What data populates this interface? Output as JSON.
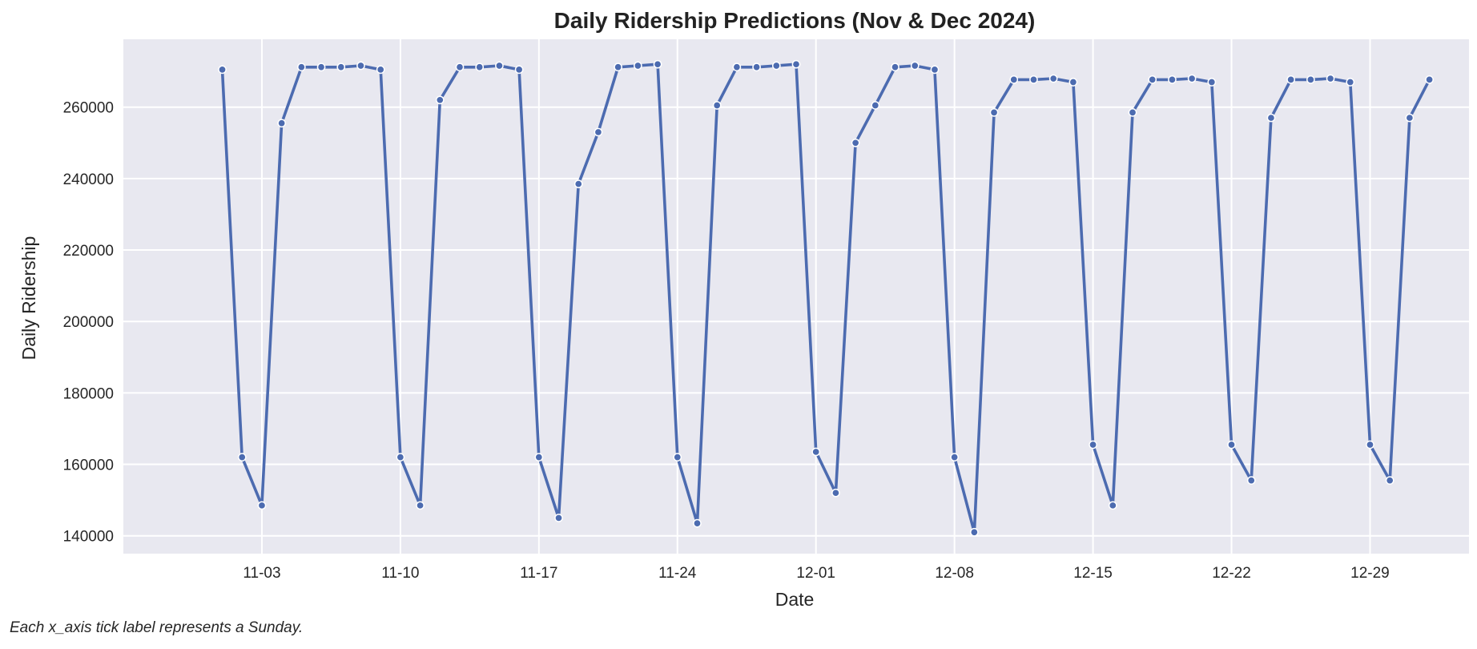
{
  "chart_data": {
    "type": "line",
    "title": "Daily Ridership Predictions (Nov & Dec 2024)",
    "xlabel": "Date",
    "ylabel": "Daily Ridership",
    "x_tick_labels": [
      "11-03",
      "11-10",
      "11-17",
      "11-24",
      "12-01",
      "12-08",
      "12-15",
      "12-22",
      "12-29"
    ],
    "y_ticks": [
      140000,
      160000,
      180000,
      200000,
      220000,
      240000,
      260000
    ],
    "ylim": [
      135000,
      279000
    ],
    "xlim": [
      "2024-10-27",
      "2025-01-03"
    ],
    "grid": true,
    "markers": true,
    "colors": {
      "line": "#4c6bb0",
      "plot_background": "#e8e8f0",
      "grid": "#ffffff",
      "marker_edge": "#ffffff"
    },
    "series": [
      {
        "x": [
          "2024-11-01",
          "2024-11-02",
          "2024-11-03",
          "2024-11-04",
          "2024-11-05",
          "2024-11-06",
          "2024-11-07",
          "2024-11-08",
          "2024-11-09",
          "2024-11-10",
          "2024-11-11",
          "2024-11-12",
          "2024-11-13",
          "2024-11-14",
          "2024-11-15",
          "2024-11-16",
          "2024-11-17",
          "2024-11-18",
          "2024-11-19",
          "2024-11-20",
          "2024-11-21",
          "2024-11-22",
          "2024-11-23",
          "2024-11-24",
          "2024-11-25",
          "2024-11-26",
          "2024-11-27",
          "2024-11-28",
          "2024-11-29",
          "2024-11-30",
          "2024-12-01",
          "2024-12-02",
          "2024-12-03",
          "2024-12-04",
          "2024-12-05",
          "2024-12-06",
          "2024-12-07",
          "2024-12-08",
          "2024-12-09",
          "2024-12-10",
          "2024-12-11",
          "2024-12-12",
          "2024-12-13",
          "2024-12-14",
          "2024-12-15",
          "2024-12-16",
          "2024-12-17",
          "2024-12-18",
          "2024-12-19",
          "2024-12-20",
          "2024-12-21",
          "2024-12-22",
          "2024-12-23",
          "2024-12-24",
          "2024-12-25",
          "2024-12-26",
          "2024-12-27",
          "2024-12-28",
          "2024-12-29",
          "2024-12-30",
          "2024-12-31"
        ],
        "y": [
          270500,
          162000,
          148500,
          255500,
          271200,
          271200,
          271200,
          271600,
          270500,
          162000,
          148500,
          262000,
          271200,
          271200,
          271600,
          270500,
          162000,
          145000,
          238500,
          253000,
          271200,
          271600,
          272000,
          162000,
          143500,
          260500,
          271200,
          271200,
          271600,
          272000,
          163500,
          152000,
          250000,
          260500,
          271200,
          271600,
          270500,
          162000,
          141000,
          258500,
          267700,
          267700,
          268000,
          267000,
          165500,
          148500,
          258500,
          267700,
          267700,
          268000,
          267000,
          165500,
          155500,
          257000,
          267700,
          267700,
          268000,
          267000,
          165500,
          155500,
          257000
        ]
      }
    ],
    "y_values_continued": [
      267700
    ]
  },
  "footnote": "Each x_axis tick label represents a Sunday."
}
